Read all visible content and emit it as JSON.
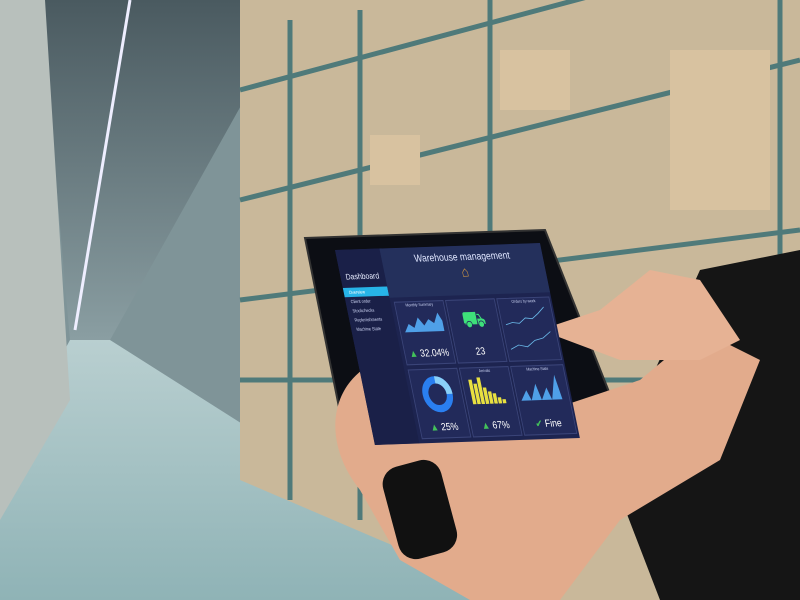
{
  "tablet": {
    "title": "Warehouse management",
    "sidebar": {
      "title": "Dashboard",
      "items": [
        {
          "label": "Overview",
          "active": true
        },
        {
          "label": "Client order"
        },
        {
          "label": "Stockchecks"
        },
        {
          "label": "Replenishments"
        },
        {
          "label": "Machine State"
        }
      ]
    },
    "panels": [
      {
        "label": "Monthly Summary",
        "value": "32.04%",
        "icon": "triangle-up-icon"
      },
      {
        "label": "",
        "value": "23",
        "icon": "truck-icon"
      },
      {
        "label": "Orders by week",
        "value": ""
      },
      {
        "label": "",
        "value": "25%",
        "icon": "donut-chart-icon"
      },
      {
        "label": "Arrivals",
        "value": "67%",
        "icon": "triangle-up-icon"
      },
      {
        "label": "Machine State",
        "value": "Fine",
        "icon": "check-icon"
      }
    ],
    "colors": {
      "screen": "#1d2450",
      "accent": "#27b4e8",
      "green": "#43c35a",
      "truck": "#3ee07a",
      "yellow": "#e8e040"
    }
  }
}
